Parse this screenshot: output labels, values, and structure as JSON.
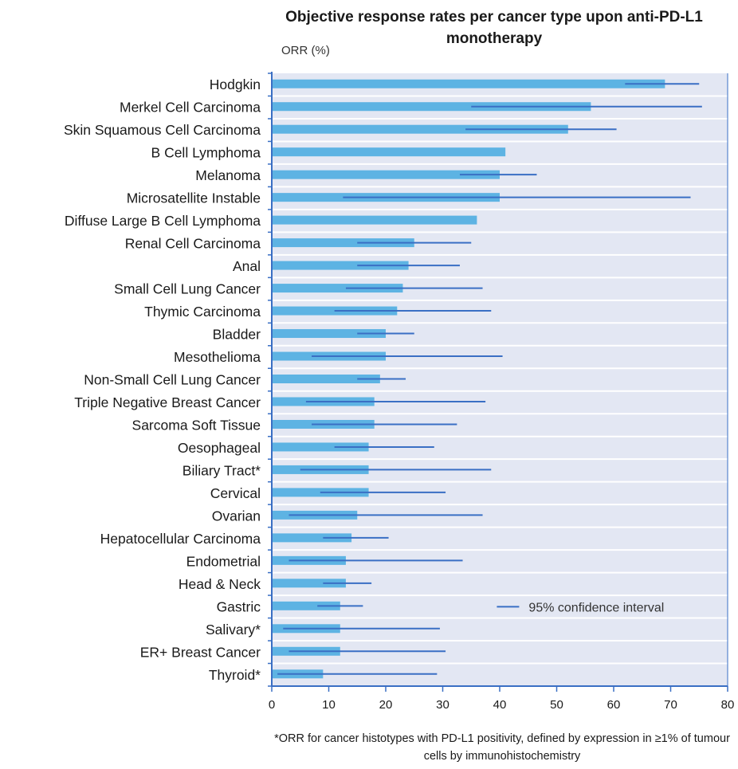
{
  "chart_data": {
    "type": "bar",
    "orientation": "horizontal",
    "title": "Objective response rates per cancer type upon anti-PD-L1 monotherapy",
    "ylabel": "ORR (%)",
    "xlim": [
      0,
      80
    ],
    "xticks": [
      0,
      10,
      20,
      30,
      40,
      50,
      60,
      70,
      80
    ],
    "legend": {
      "label": "95% confidence interval",
      "placement": "bottom-right"
    },
    "footnote": "*ORR for cancer histotypes with PD-L1 positivity, defined by expression in ≥1% of tumour cells by immunohistochemistry",
    "categories": [
      "Hodgkin",
      "Merkel Cell Carcinoma",
      "Skin Squamous Cell Carcinoma",
      "B Cell Lymphoma",
      "Melanoma",
      "Microsatellite Instable",
      "Diffuse Large B Cell Lymphoma",
      "Renal Cell Carcinoma",
      "Anal",
      "Small Cell Lung Cancer",
      "Thymic Carcinoma",
      "Bladder",
      "Mesothelioma",
      "Non-Small Cell Lung Cancer",
      "Triple Negative Breast Cancer",
      "Sarcoma Soft Tissue",
      "Oesophageal",
      "Biliary Tract*",
      "Cervical",
      "Ovarian",
      "Hepatocellular Carcinoma",
      "Endometrial",
      "Head & Neck",
      "Gastric",
      "Salivary*",
      "ER+ Breast Cancer",
      "Thyroid*"
    ],
    "values": [
      69,
      56,
      52,
      41,
      40,
      40,
      36,
      25,
      24,
      23,
      22,
      20,
      20,
      19,
      18,
      18,
      17,
      17,
      17,
      15,
      14,
      13,
      13,
      12,
      12,
      12,
      9
    ],
    "ci": [
      [
        62,
        75
      ],
      [
        35,
        75.5
      ],
      [
        34,
        60.5
      ],
      null,
      [
        33,
        46.5
      ],
      [
        12.5,
        73.5
      ],
      null,
      [
        15,
        35
      ],
      [
        15,
        33
      ],
      [
        13,
        37
      ],
      [
        11,
        38.5
      ],
      [
        15,
        25
      ],
      [
        7,
        40.5
      ],
      [
        15,
        23.5
      ],
      [
        6,
        37.5
      ],
      [
        7,
        32.5
      ],
      [
        11,
        28.5
      ],
      [
        5,
        38.5
      ],
      [
        8.5,
        30.5
      ],
      [
        3,
        37
      ],
      [
        9,
        20.5
      ],
      [
        3,
        33.5
      ],
      [
        9,
        17.5
      ],
      [
        8,
        16
      ],
      [
        2,
        29.5
      ],
      [
        3,
        30.5
      ],
      [
        1,
        29
      ]
    ],
    "colors": {
      "bar": "#5db3e3",
      "ci": "#3a6fc4",
      "background": "#e3e7f3",
      "axis": "#3a6fc4"
    }
  }
}
